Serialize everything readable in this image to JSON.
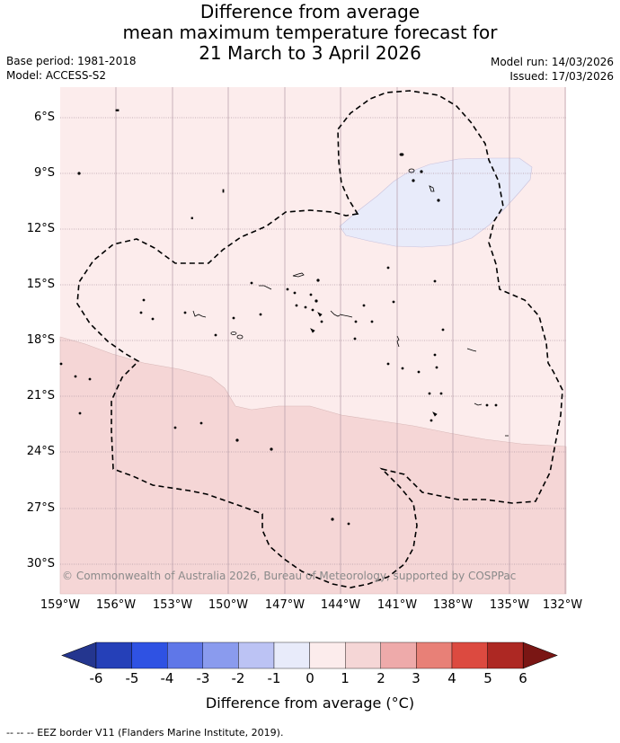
{
  "title": {
    "line1": "Difference from average",
    "line2": "mean maximum temperature forecast for",
    "line3": "21 March to 3 April 2026"
  },
  "meta": {
    "base_period": "Base period: 1981-2018",
    "model": "Model: ACCESS-S2",
    "model_run": "Model run: 14/03/2026",
    "issued": "Issued: 17/03/2026"
  },
  "map": {
    "lat_ticks": [
      "6°S",
      "9°S",
      "12°S",
      "15°S",
      "18°S",
      "21°S",
      "24°S",
      "27°S",
      "30°S"
    ],
    "lon_ticks": [
      "159°W",
      "156°W",
      "153°W",
      "150°W",
      "147°W",
      "144°W",
      "141°W",
      "138°W",
      "135°W",
      "132°W"
    ],
    "lat_range": [
      4.5,
      31.5
    ],
    "lon_range": [
      -159,
      -132
    ],
    "copyright": "© Commonwealth of Australia 2026, Bureau of Meteorology, supported by COSPPac",
    "background_category": "0 to 1",
    "colors": {
      "neg_1_to_0": "#e8ebfa",
      "0_to_1": "#fcecec",
      "1_to_2": "#f5d6d6",
      "eez_border": "#000000",
      "gridline": "#b49aa6"
    }
  },
  "colorbar": {
    "tick_labels": [
      "-6",
      "-5",
      "-4",
      "-3",
      "-2",
      "-1",
      "0",
      "1",
      "2",
      "3",
      "4",
      "5",
      "6"
    ],
    "colors": [
      "#24368f",
      "#2540b8",
      "#2f52e3",
      "#5f77e8",
      "#8a9bee",
      "#bcc3f4",
      "#e8ebfa",
      "#fcecec",
      "#f5d6d6",
      "#eeaaaa",
      "#e88077",
      "#dc4a40",
      "#ad2823",
      "#7a1614"
    ],
    "title": "Difference from average (°C)"
  },
  "footnote": "-- -- -- EEZ border V11 (Flanders Marine Institute, 2019)."
}
